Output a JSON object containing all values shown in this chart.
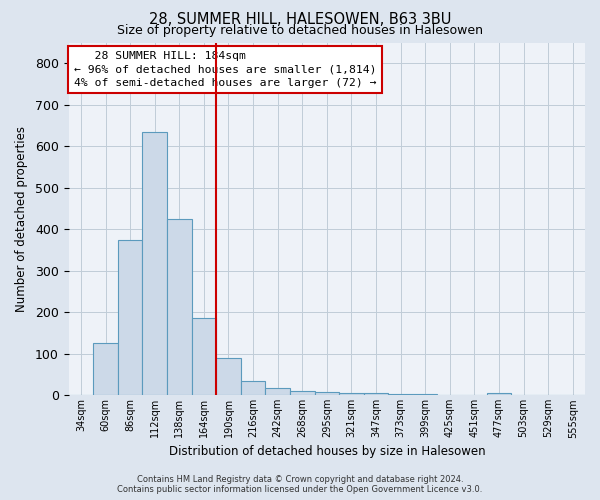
{
  "title": "28, SUMMER HILL, HALESOWEN, B63 3BU",
  "subtitle": "Size of property relative to detached houses in Halesowen",
  "xlabel": "Distribution of detached houses by size in Halesowen",
  "ylabel": "Number of detached properties",
  "footer_line1": "Contains HM Land Registry data © Crown copyright and database right 2024.",
  "footer_line2": "Contains public sector information licensed under the Open Government Licence v3.0.",
  "bar_labels": [
    "34sqm",
    "60sqm",
    "86sqm",
    "112sqm",
    "138sqm",
    "164sqm",
    "190sqm",
    "216sqm",
    "242sqm",
    "268sqm",
    "295sqm",
    "321sqm",
    "347sqm",
    "373sqm",
    "399sqm",
    "425sqm",
    "451sqm",
    "477sqm",
    "503sqm",
    "529sqm",
    "555sqm"
  ],
  "bar_values": [
    0,
    127,
    375,
    635,
    425,
    185,
    90,
    35,
    18,
    10,
    8,
    5,
    5,
    3,
    2,
    1,
    1,
    5,
    0,
    0,
    0
  ],
  "bar_color": "#ccd9e8",
  "bar_edgecolor": "#5b9abd",
  "vline_color": "#cc0000",
  "annotation_line1": "   28 SUMMER HILL: 184sqm",
  "annotation_line2": "← 96% of detached houses are smaller (1,814)",
  "annotation_line3": "4% of semi-detached houses are larger (72) →",
  "annotation_box_edgecolor": "#cc0000",
  "annotation_box_facecolor": "#ffffff",
  "ylim": [
    0,
    850
  ],
  "yticks": [
    0,
    100,
    200,
    300,
    400,
    500,
    600,
    700,
    800
  ],
  "background_color": "#dde5ef",
  "plot_background": "#eef2f8",
  "grid_color": "#c0ccd8",
  "title_fontsize": 10.5,
  "subtitle_fontsize": 9
}
